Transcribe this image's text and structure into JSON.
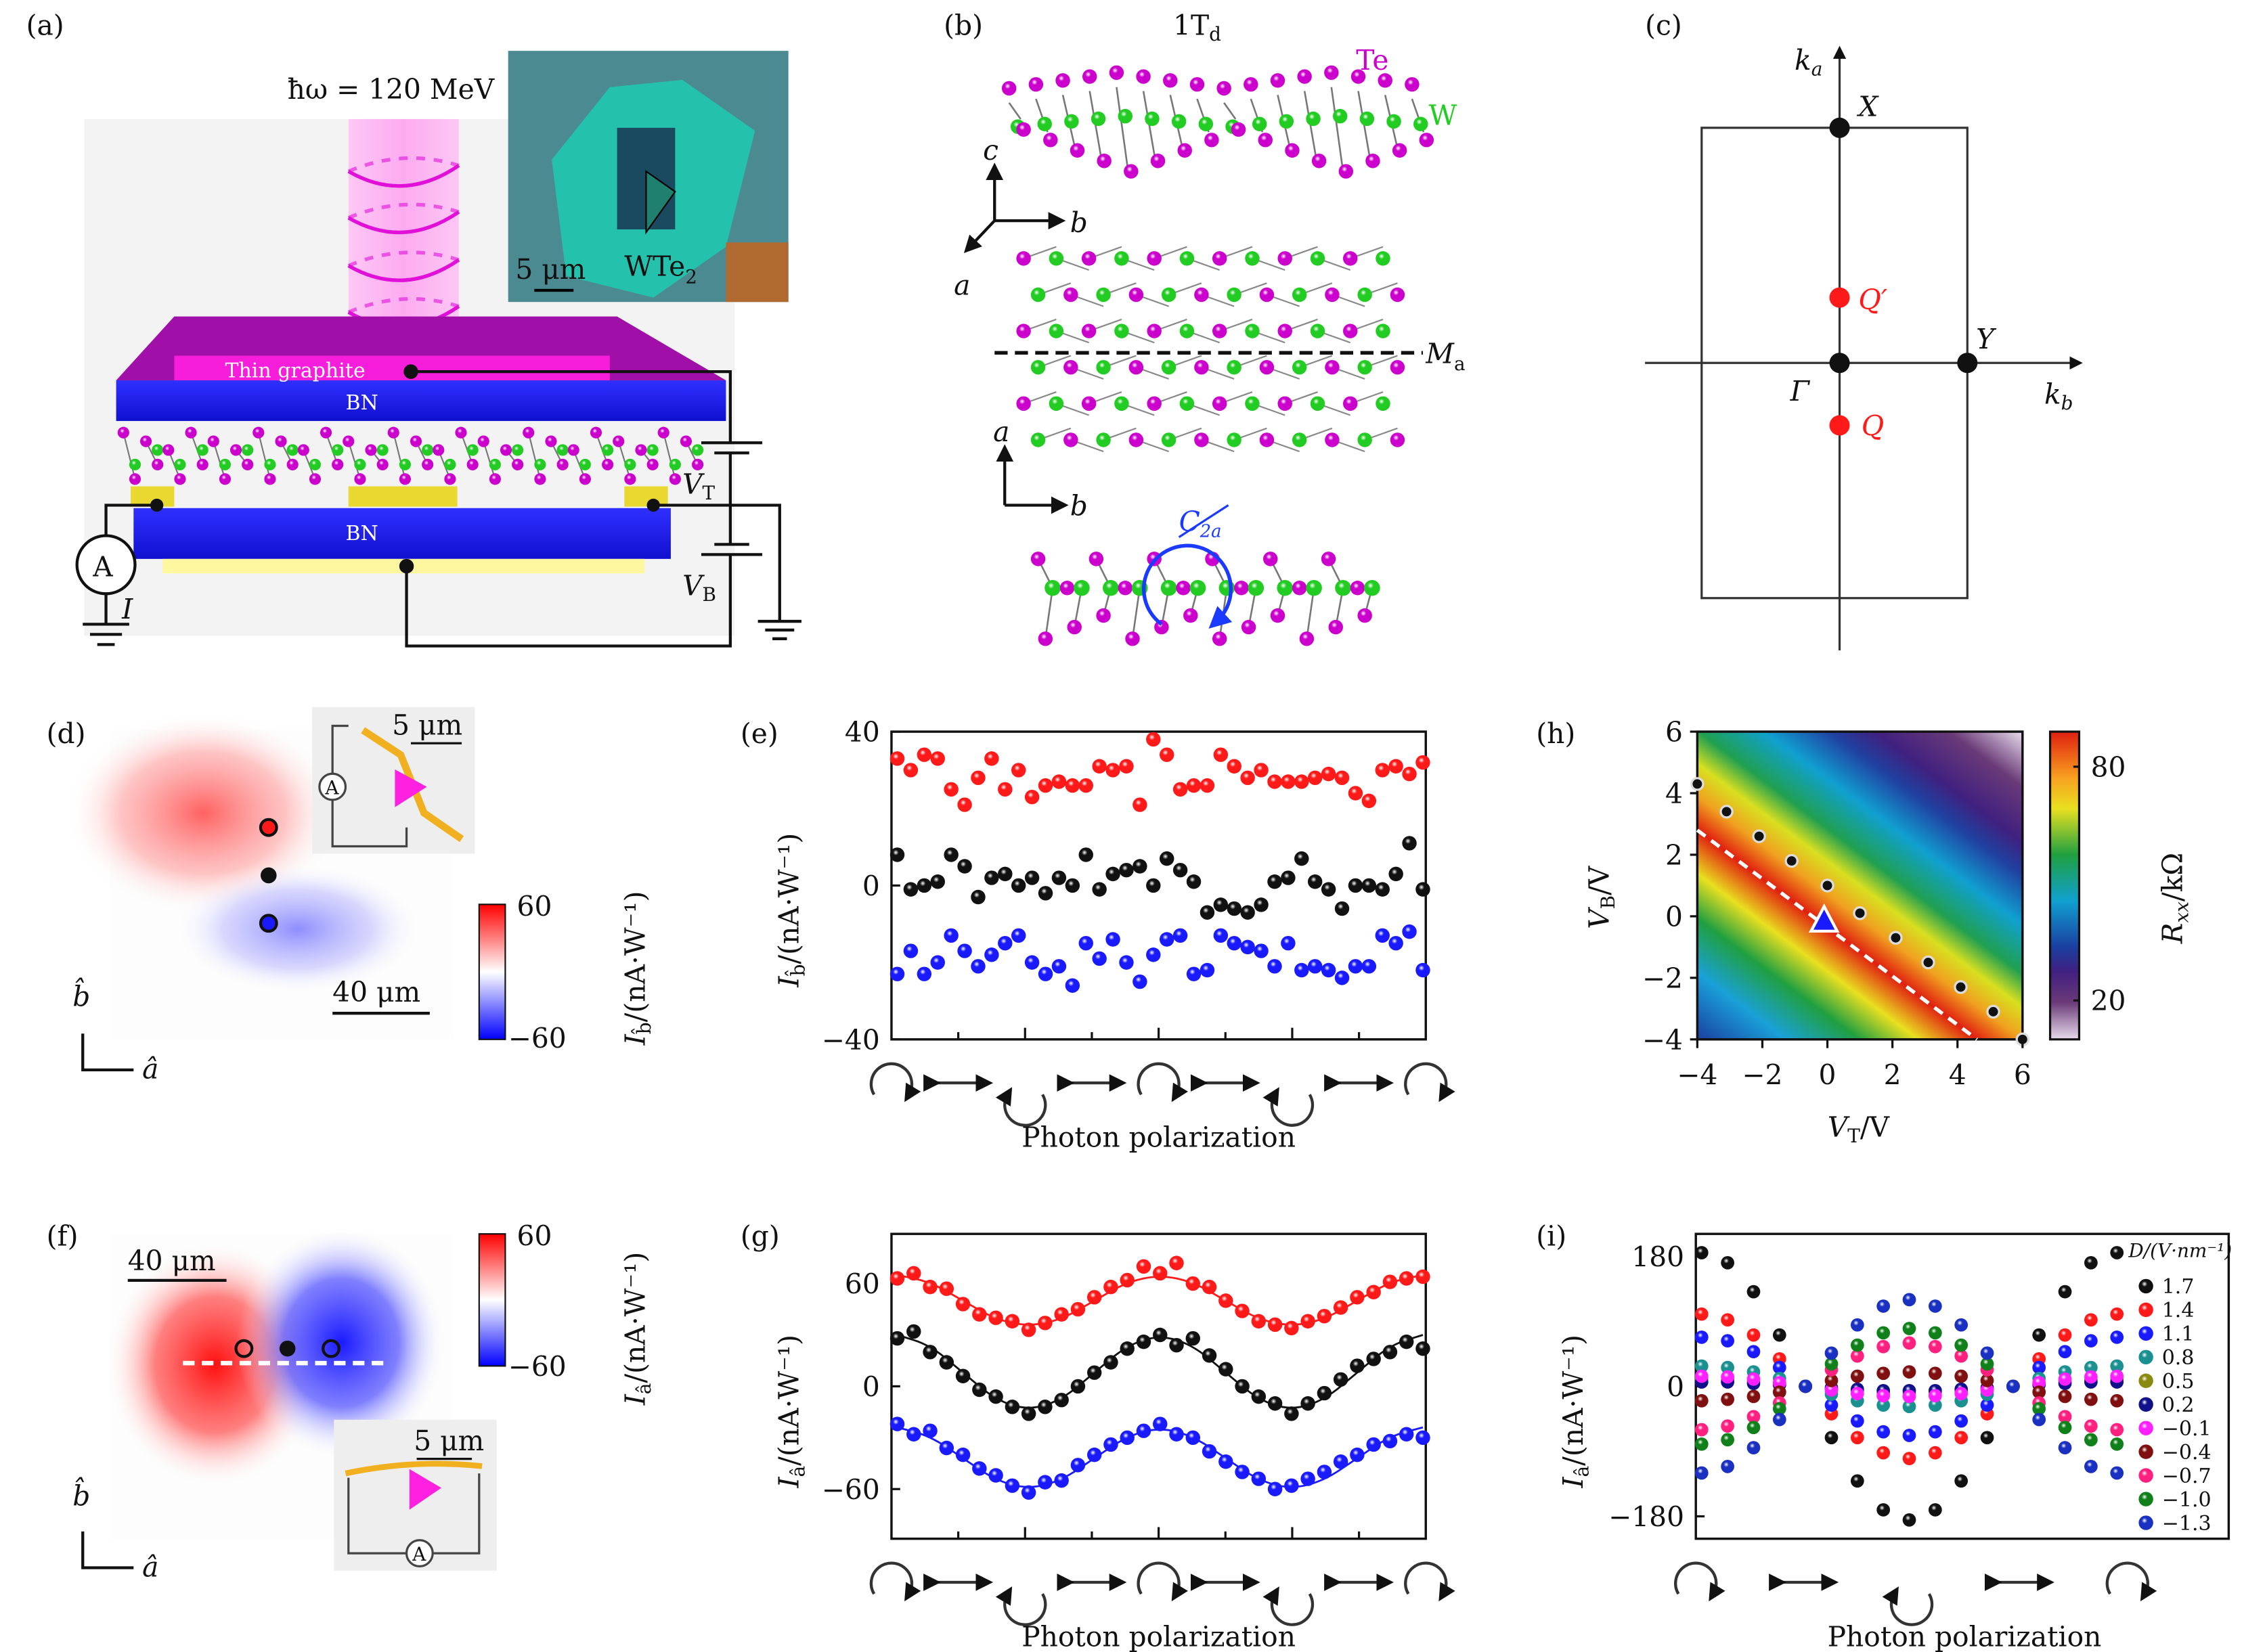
{
  "panels": {
    "a": {
      "label": "(a)",
      "photon_energy": "ħω = 120 MeV",
      "scale_bar": "5 μm",
      "material": "WTe",
      "material_sub": "2",
      "top_layer": "Thin graphite",
      "bn_top": "BN",
      "bn_bottom": "BN",
      "ammeter": "A",
      "current": "I",
      "vt": "V",
      "vt_sub": "T",
      "vb": "V",
      "vb_sub": "B"
    },
    "b": {
      "label": "(b)",
      "phase": "1T",
      "phase_sub": "d",
      "te": "Te",
      "w": "W",
      "axis_c": "c",
      "axis_b": "b",
      "axis_a": "a",
      "mirror": "M",
      "mirror_sub": "a",
      "axis_a2": "a",
      "axis_b2": "b",
      "c2": "C",
      "c2_sub": "2a"
    },
    "c": {
      "label": "(c)",
      "ka": "k",
      "ka_sub": "a",
      "kb": "k",
      "kb_sub": "b",
      "X": "X",
      "Y": "Y",
      "Gamma": "Γ",
      "Q": "Q",
      "Qp": "Q′"
    },
    "d": {
      "label": "(d)",
      "inset_scale": "5 μm",
      "ammeter": "A",
      "scale_bar": "40 μm",
      "cbar_max": "60",
      "cbar_min": "−60",
      "cbar_label": "I",
      "cbar_label_sub": "b̂",
      "cbar_label_unit": "/(nA·W⁻¹)",
      "axis_b": "b̂",
      "axis_a": "â"
    },
    "e": {
      "label": "(e)"
    },
    "f": {
      "label": "(f)",
      "scale_bar": "40 μm",
      "inset_scale": "5 μm",
      "ammeter": "A",
      "cbar_max": "60",
      "cbar_min": "−60",
      "cbar_label": "I",
      "cbar_label_sub": "â",
      "cbar_label_unit": "/(nA·W⁻¹)",
      "axis_b": "b̂",
      "axis_a": "â"
    },
    "g": {
      "label": "(g)"
    },
    "h": {
      "label": "(h)"
    },
    "i": {
      "label": "(i)"
    }
  },
  "colors": {
    "red": "#ff1a1a",
    "black": "#111111",
    "blue": "#1a1aff",
    "magenta": "#cc00cc",
    "green": "#22cc22",
    "bn": "#1a1aff",
    "graphite": "#d010c0"
  },
  "chart_data": [
    {
      "id": "e",
      "type": "scatter",
      "ylabel": "I",
      "ylabel_sub": "b̂",
      "ylabel_unit": "/(nA·W⁻¹)",
      "xlabel": "Photon polarization",
      "ylim": [
        -40,
        40
      ],
      "yticks": [
        {
          "v": 40,
          "t": "40"
        },
        {
          "v": 0,
          "t": "0"
        },
        {
          "v": -40,
          "t": "−40"
        }
      ],
      "grid": false,
      "series": [
        {
          "color": "#ff1a1a",
          "values": [
            33,
            30,
            34,
            33,
            25,
            21,
            28,
            33,
            25,
            30,
            23,
            26,
            27,
            26,
            26,
            31,
            30,
            31,
            21,
            38,
            34,
            25,
            26,
            26,
            34,
            31,
            28,
            30,
            27,
            27,
            27,
            28,
            29,
            28,
            24,
            22,
            30,
            31,
            29,
            32
          ]
        },
        {
          "color": "#111111",
          "values": [
            8,
            -1,
            0,
            1,
            8,
            5,
            -3,
            2,
            3,
            0,
            2,
            -2,
            2,
            0,
            8,
            -1,
            3,
            4,
            5,
            0,
            7,
            4,
            1,
            -7,
            -5,
            -6,
            -7,
            -5,
            1,
            2,
            7,
            1,
            -1,
            -6,
            0,
            0,
            -1,
            3,
            11,
            -1
          ]
        },
        {
          "color": "#1a1aff",
          "values": [
            -23,
            -17,
            -23,
            -20,
            -13,
            -17,
            -21,
            -18,
            -15,
            -13,
            -20,
            -23,
            -21,
            -26,
            -15,
            -19,
            -14,
            -20,
            -25,
            -18,
            -14,
            -13,
            -23,
            -22,
            -13,
            -15,
            -16,
            -17,
            -21,
            -15,
            -22,
            -21,
            -22,
            -24,
            -21,
            -21,
            -13,
            -15,
            -12,
            -22
          ]
        }
      ]
    },
    {
      "id": "g",
      "type": "scatter",
      "ylabel": "I",
      "ylabel_sub": "â",
      "ylabel_unit": "/(nA·W⁻¹)",
      "xlabel": "Photon polarization",
      "ylim": [
        -89,
        89
      ],
      "yticks": [
        {
          "v": 60,
          "t": "60"
        },
        {
          "v": 0,
          "t": "0"
        },
        {
          "v": -60,
          "t": "−60"
        }
      ],
      "grid": false,
      "series": [
        {
          "color": "#ff1a1a",
          "values": [
            63,
            66,
            58,
            57,
            48,
            42,
            40,
            38,
            33,
            37,
            42,
            45,
            52,
            58,
            62,
            70,
            66,
            72,
            60,
            58,
            50,
            44,
            38,
            36,
            34,
            38,
            41,
            46,
            52,
            55,
            61,
            63,
            64
          ],
          "fit": [
            65,
            61,
            50,
            39,
            35,
            39,
            50,
            61,
            65,
            61,
            50,
            39,
            35,
            39,
            50,
            61,
            65
          ]
        },
        {
          "color": "#111111",
          "values": [
            28,
            32,
            20,
            14,
            6,
            -2,
            -6,
            -12,
            -16,
            -12,
            -8,
            0,
            8,
            14,
            22,
            26,
            30,
            24,
            28,
            18,
            10,
            0,
            -6,
            -10,
            -16,
            -10,
            -4,
            4,
            12,
            16,
            20,
            26,
            22
          ],
          "fit": [
            30,
            24,
            8,
            -8,
            -14,
            -8,
            8,
            24,
            30,
            24,
            8,
            -8,
            -14,
            -8,
            8,
            24,
            30
          ]
        },
        {
          "color": "#1a1aff",
          "values": [
            -22,
            -28,
            -26,
            -36,
            -40,
            -48,
            -52,
            -58,
            -62,
            -56,
            -55,
            -46,
            -40,
            -34,
            -30,
            -26,
            -22,
            -28,
            -30,
            -38,
            -44,
            -50,
            -54,
            -60,
            -58,
            -54,
            -50,
            -44,
            -40,
            -34,
            -32,
            -28,
            -30
          ],
          "fit": [
            -24,
            -29,
            -42,
            -55,
            -60,
            -55,
            -42,
            -29,
            -24,
            -29,
            -42,
            -55,
            -60,
            -55,
            -42,
            -29,
            -24
          ]
        }
      ]
    },
    {
      "id": "h",
      "type": "heatmap",
      "xlabel": "V",
      "xlabel_sub": "T",
      "xlabel_unit": "/V",
      "ylabel": "V",
      "ylabel_sub": "B",
      "ylabel_unit": "/V",
      "colorbar_label": "R",
      "colorbar_label_sub": "xx",
      "colorbar_label_unit": "/kΩ",
      "xlim": [
        -4,
        6
      ],
      "ylim": [
        -4,
        6
      ],
      "xticks": [
        {
          "v": -4,
          "t": "−4"
        },
        {
          "v": -2,
          "t": "−2"
        },
        {
          "v": 0,
          "t": "0"
        },
        {
          "v": 2,
          "t": "2"
        },
        {
          "v": 4,
          "t": "4"
        },
        {
          "v": 6,
          "t": "6"
        }
      ],
      "yticks": [
        {
          "v": 6,
          "t": "6"
        },
        {
          "v": 4,
          "t": "4"
        },
        {
          "v": 2,
          "t": "2"
        },
        {
          "v": 0,
          "t": "0"
        },
        {
          "v": -2,
          "t": "−2"
        },
        {
          "v": -4,
          "t": "−4"
        }
      ],
      "clim": [
        10,
        89
      ],
      "cticks": [
        {
          "v": 80,
          "t": "80"
        },
        {
          "v": 20,
          "t": "20"
        }
      ],
      "max_ridge": {
        "from": [
          -4,
          2.8
        ],
        "to": [
          4.6,
          -4
        ]
      },
      "points": [
        [
          -4,
          4.3
        ],
        [
          -3.1,
          3.4
        ],
        [
          -2.1,
          2.6
        ],
        [
          -1.1,
          1.8
        ],
        [
          0,
          1
        ],
        [
          1,
          0.1
        ],
        [
          2.1,
          -0.7
        ],
        [
          3.1,
          -1.5
        ],
        [
          4.1,
          -2.3
        ],
        [
          5.1,
          -3.1
        ],
        [
          6,
          -4
        ]
      ],
      "triangle": [
        -0.1,
        -0.2
      ]
    },
    {
      "id": "i",
      "type": "scatter",
      "ylabel": "I",
      "ylabel_sub": "â",
      "ylabel_unit": "/(nA·W⁻¹)",
      "xlabel": "Photon polarization",
      "ylim": [
        -211,
        211
      ],
      "yticks": [
        {
          "v": 180,
          "t": "180"
        },
        {
          "v": 0,
          "t": "0"
        },
        {
          "v": -180,
          "t": "−180"
        }
      ],
      "legend_title": "D/(V·nm⁻¹)",
      "legend_position": "right",
      "series": [
        {
          "name": "1.7",
          "color": "#111111",
          "values": [
            185,
            171,
            131,
            71,
            0,
            -71,
            -131,
            -171,
            -185,
            -171,
            -131,
            -71,
            0,
            71,
            131,
            171,
            185
          ]
        },
        {
          "name": "1.4",
          "color": "#ff1a1a",
          "values": [
            100,
            92,
            71,
            38,
            0,
            -38,
            -71,
            -92,
            -100,
            -92,
            -71,
            -38,
            0,
            38,
            71,
            92,
            100
          ]
        },
        {
          "name": "1.1",
          "color": "#1a1aff",
          "values": [
            68,
            63,
            48,
            26,
            0,
            -26,
            -48,
            -63,
            -68,
            -63,
            -48,
            -26,
            0,
            26,
            48,
            63,
            68
          ]
        },
        {
          "name": "0.8",
          "color": "#1a9090",
          "values": [
            28,
            26,
            20,
            11,
            0,
            -11,
            -20,
            -26,
            -28,
            -26,
            -20,
            -11,
            0,
            11,
            20,
            26,
            28
          ]
        },
        {
          "name": "0.5",
          "color": "#8a8a10",
          "values": [
            10,
            9,
            7,
            4,
            0,
            -4,
            -7,
            -9,
            -10,
            -9,
            -7,
            -4,
            0,
            4,
            7,
            9,
            10
          ]
        },
        {
          "name": "0.2",
          "color": "#10108a",
          "values": [
            6,
            6,
            4,
            2,
            0,
            -2,
            -4,
            -6,
            -6,
            -6,
            -4,
            -2,
            0,
            2,
            4,
            6,
            6
          ]
        },
        {
          "name": "−0.1",
          "color": "#ff20ff",
          "values": [
            14,
            13,
            10,
            5,
            0,
            -5,
            -10,
            -13,
            -14,
            -13,
            -10,
            -5,
            0,
            5,
            10,
            13,
            14
          ]
        },
        {
          "name": "−0.4",
          "color": "#801010",
          "values": [
            -20,
            -18,
            -14,
            -8,
            0,
            8,
            14,
            18,
            20,
            18,
            14,
            8,
            0,
            -8,
            -14,
            -18,
            -20
          ]
        },
        {
          "name": "−0.7",
          "color": "#ff2080",
          "values": [
            -60,
            -55,
            -42,
            -23,
            0,
            23,
            42,
            55,
            60,
            55,
            42,
            23,
            0,
            -23,
            -42,
            -55,
            -60
          ]
        },
        {
          "name": "−1.0",
          "color": "#10801a",
          "values": [
            -80,
            -74,
            -57,
            -31,
            0,
            31,
            57,
            74,
            80,
            74,
            57,
            31,
            0,
            -31,
            -57,
            -74,
            -80
          ]
        },
        {
          "name": "−1.3",
          "color": "#1a30c0",
          "values": [
            -120,
            -111,
            -85,
            -46,
            0,
            46,
            85,
            111,
            120,
            111,
            85,
            46,
            0,
            -46,
            -85,
            -111,
            -120
          ]
        }
      ]
    }
  ]
}
